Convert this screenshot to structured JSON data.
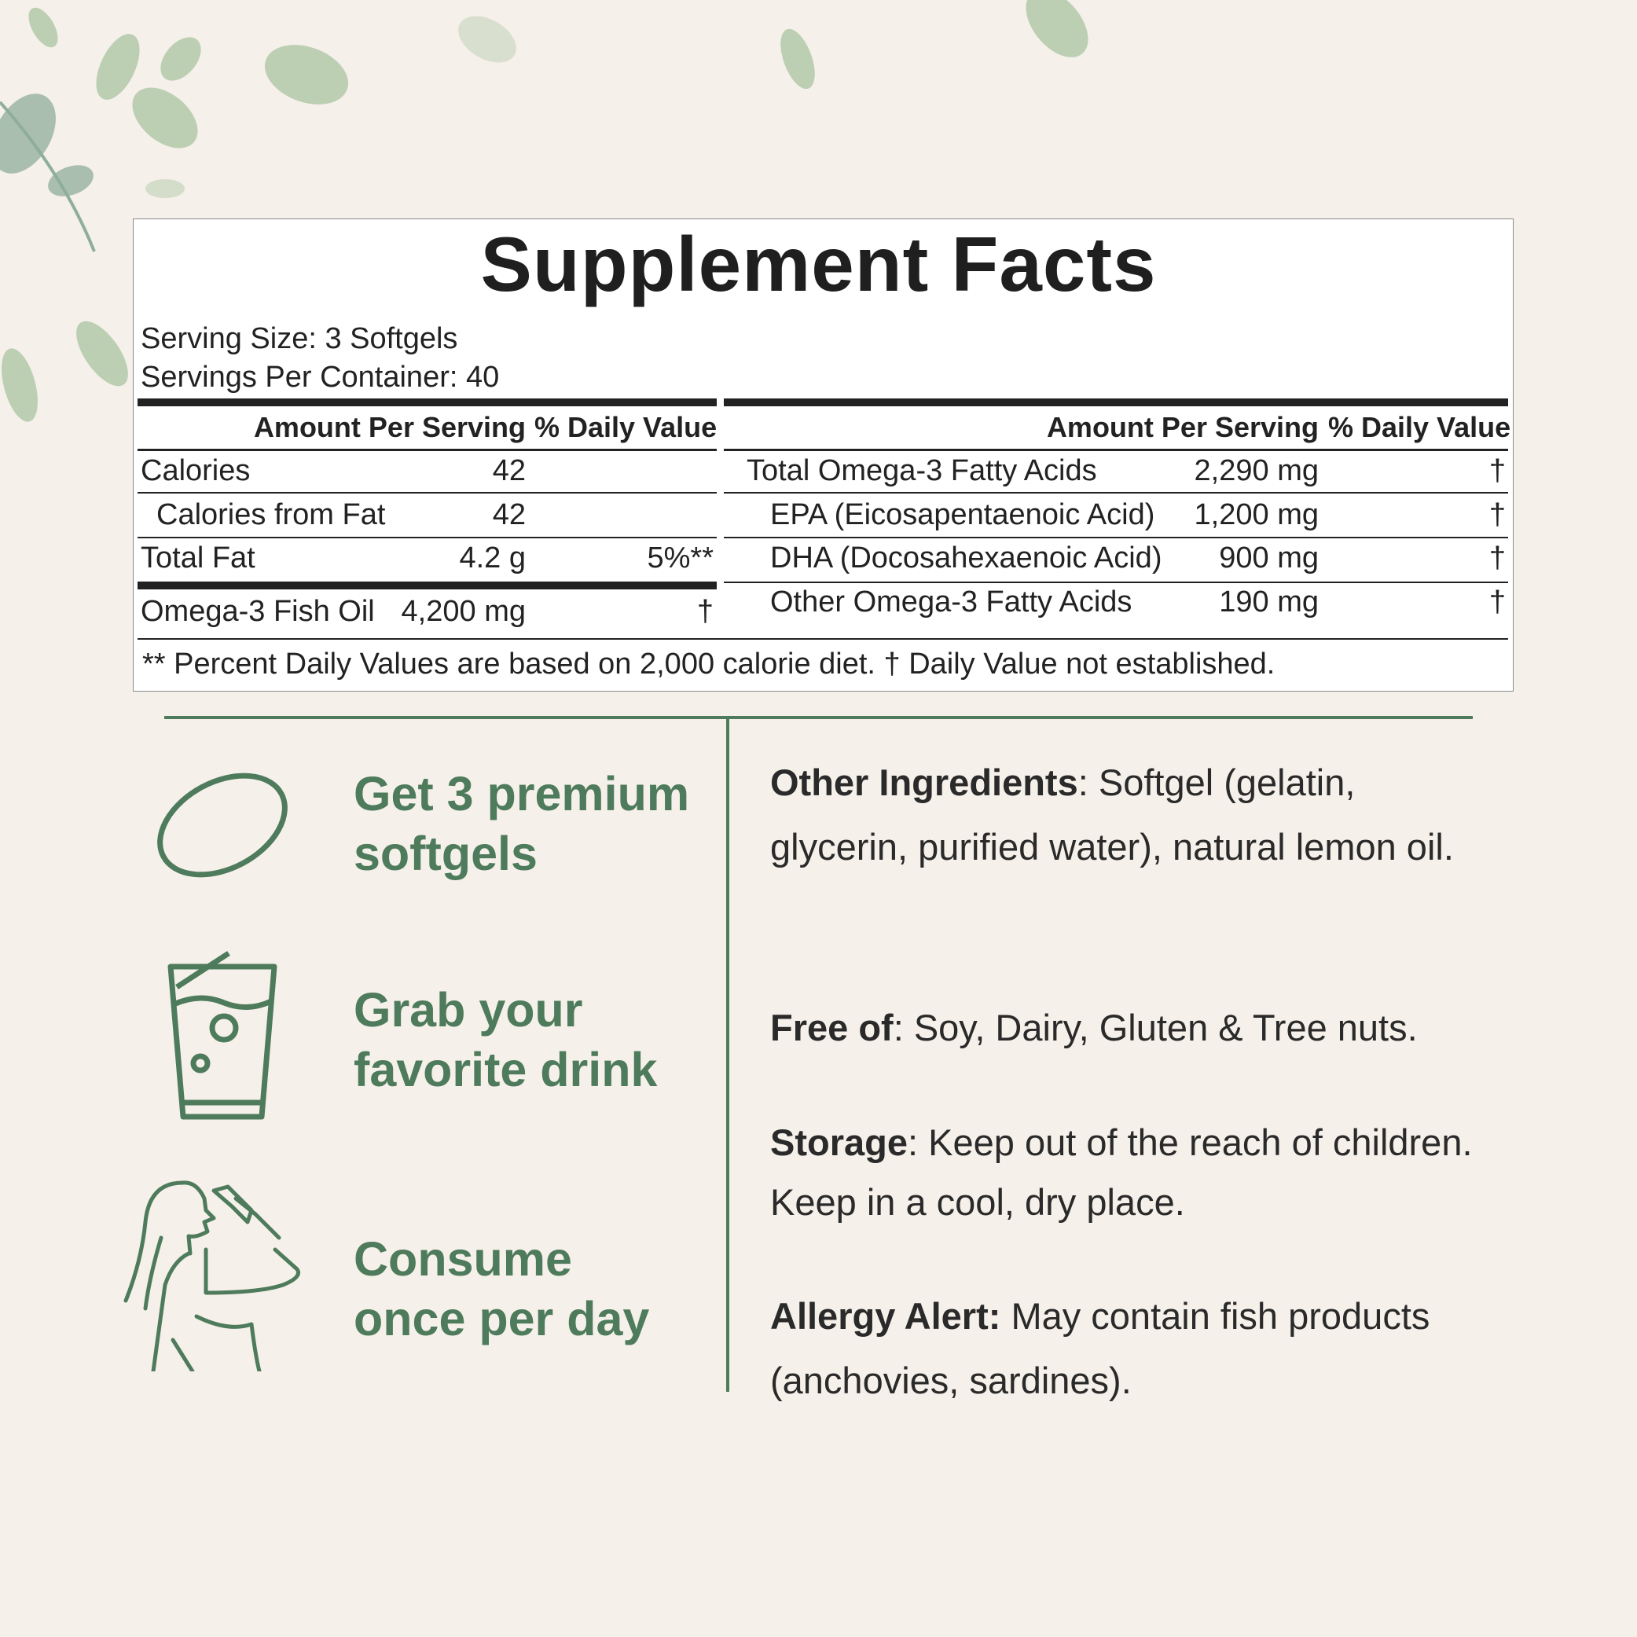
{
  "colors": {
    "background": "#f6f0ea",
    "accent": "#4e7b5c",
    "text": "#222222"
  },
  "facts": {
    "title": "Supplement Facts",
    "serving_size": "Serving Size: 3 Softgels",
    "servings_per_container": "Servings Per Container: 40",
    "left": {
      "headers": {
        "amount": "Amount Per Serving",
        "dv": "% Daily Value"
      },
      "rows": [
        {
          "name": "Calories",
          "amount": "42",
          "dv": ""
        },
        {
          "name": "Calories from Fat",
          "amount": "42",
          "dv": ""
        },
        {
          "name": "Total Fat",
          "amount": "4.2 g",
          "dv": "5%**"
        },
        {
          "name": "Omega-3 Fish Oil",
          "amount": "4,200 mg",
          "dv": "†"
        }
      ]
    },
    "right": {
      "headers": {
        "amount": "Amount Per Serving",
        "dv": "% Daily Value"
      },
      "rows": [
        {
          "name": "Total Omega-3 Fatty Acids",
          "amount": "2,290 mg",
          "dv": "†"
        },
        {
          "name": "EPA (Eicosapentaenoic Acid)",
          "amount": "1,200 mg",
          "dv": "†"
        },
        {
          "name": "DHA (Docosahexaenoic Acid)",
          "amount": "900 mg",
          "dv": "†"
        },
        {
          "name": "Other Omega-3 Fatty Acids",
          "amount": "190 mg",
          "dv": "†"
        }
      ]
    },
    "footnote": "** Percent Daily Values are based on 2,000 calorie diet. † Daily Value not established."
  },
  "steps": [
    {
      "icon": "softgel-icon",
      "line1": "Get 3 premium",
      "line2": "softgels"
    },
    {
      "icon": "drink-glass-icon",
      "line1": "Grab your",
      "line2": "favorite drink"
    },
    {
      "icon": "woman-drinking-icon",
      "line1": "Consume",
      "line2": "once per day"
    }
  ],
  "info": [
    {
      "label": "Other Ingredients",
      "text": ": Softgel (gelatin, glycerin, purified water), natural lemon oil."
    },
    {
      "label": "Free of",
      "text": ": Soy, Dairy, Gluten & Tree nuts."
    },
    {
      "label": "Storage",
      "text": ": Keep out of the reach of children. Keep in a cool, dry place."
    },
    {
      "label": "Allergy Alert:",
      "text": " May contain fish products (anchovies, sardines)."
    }
  ]
}
